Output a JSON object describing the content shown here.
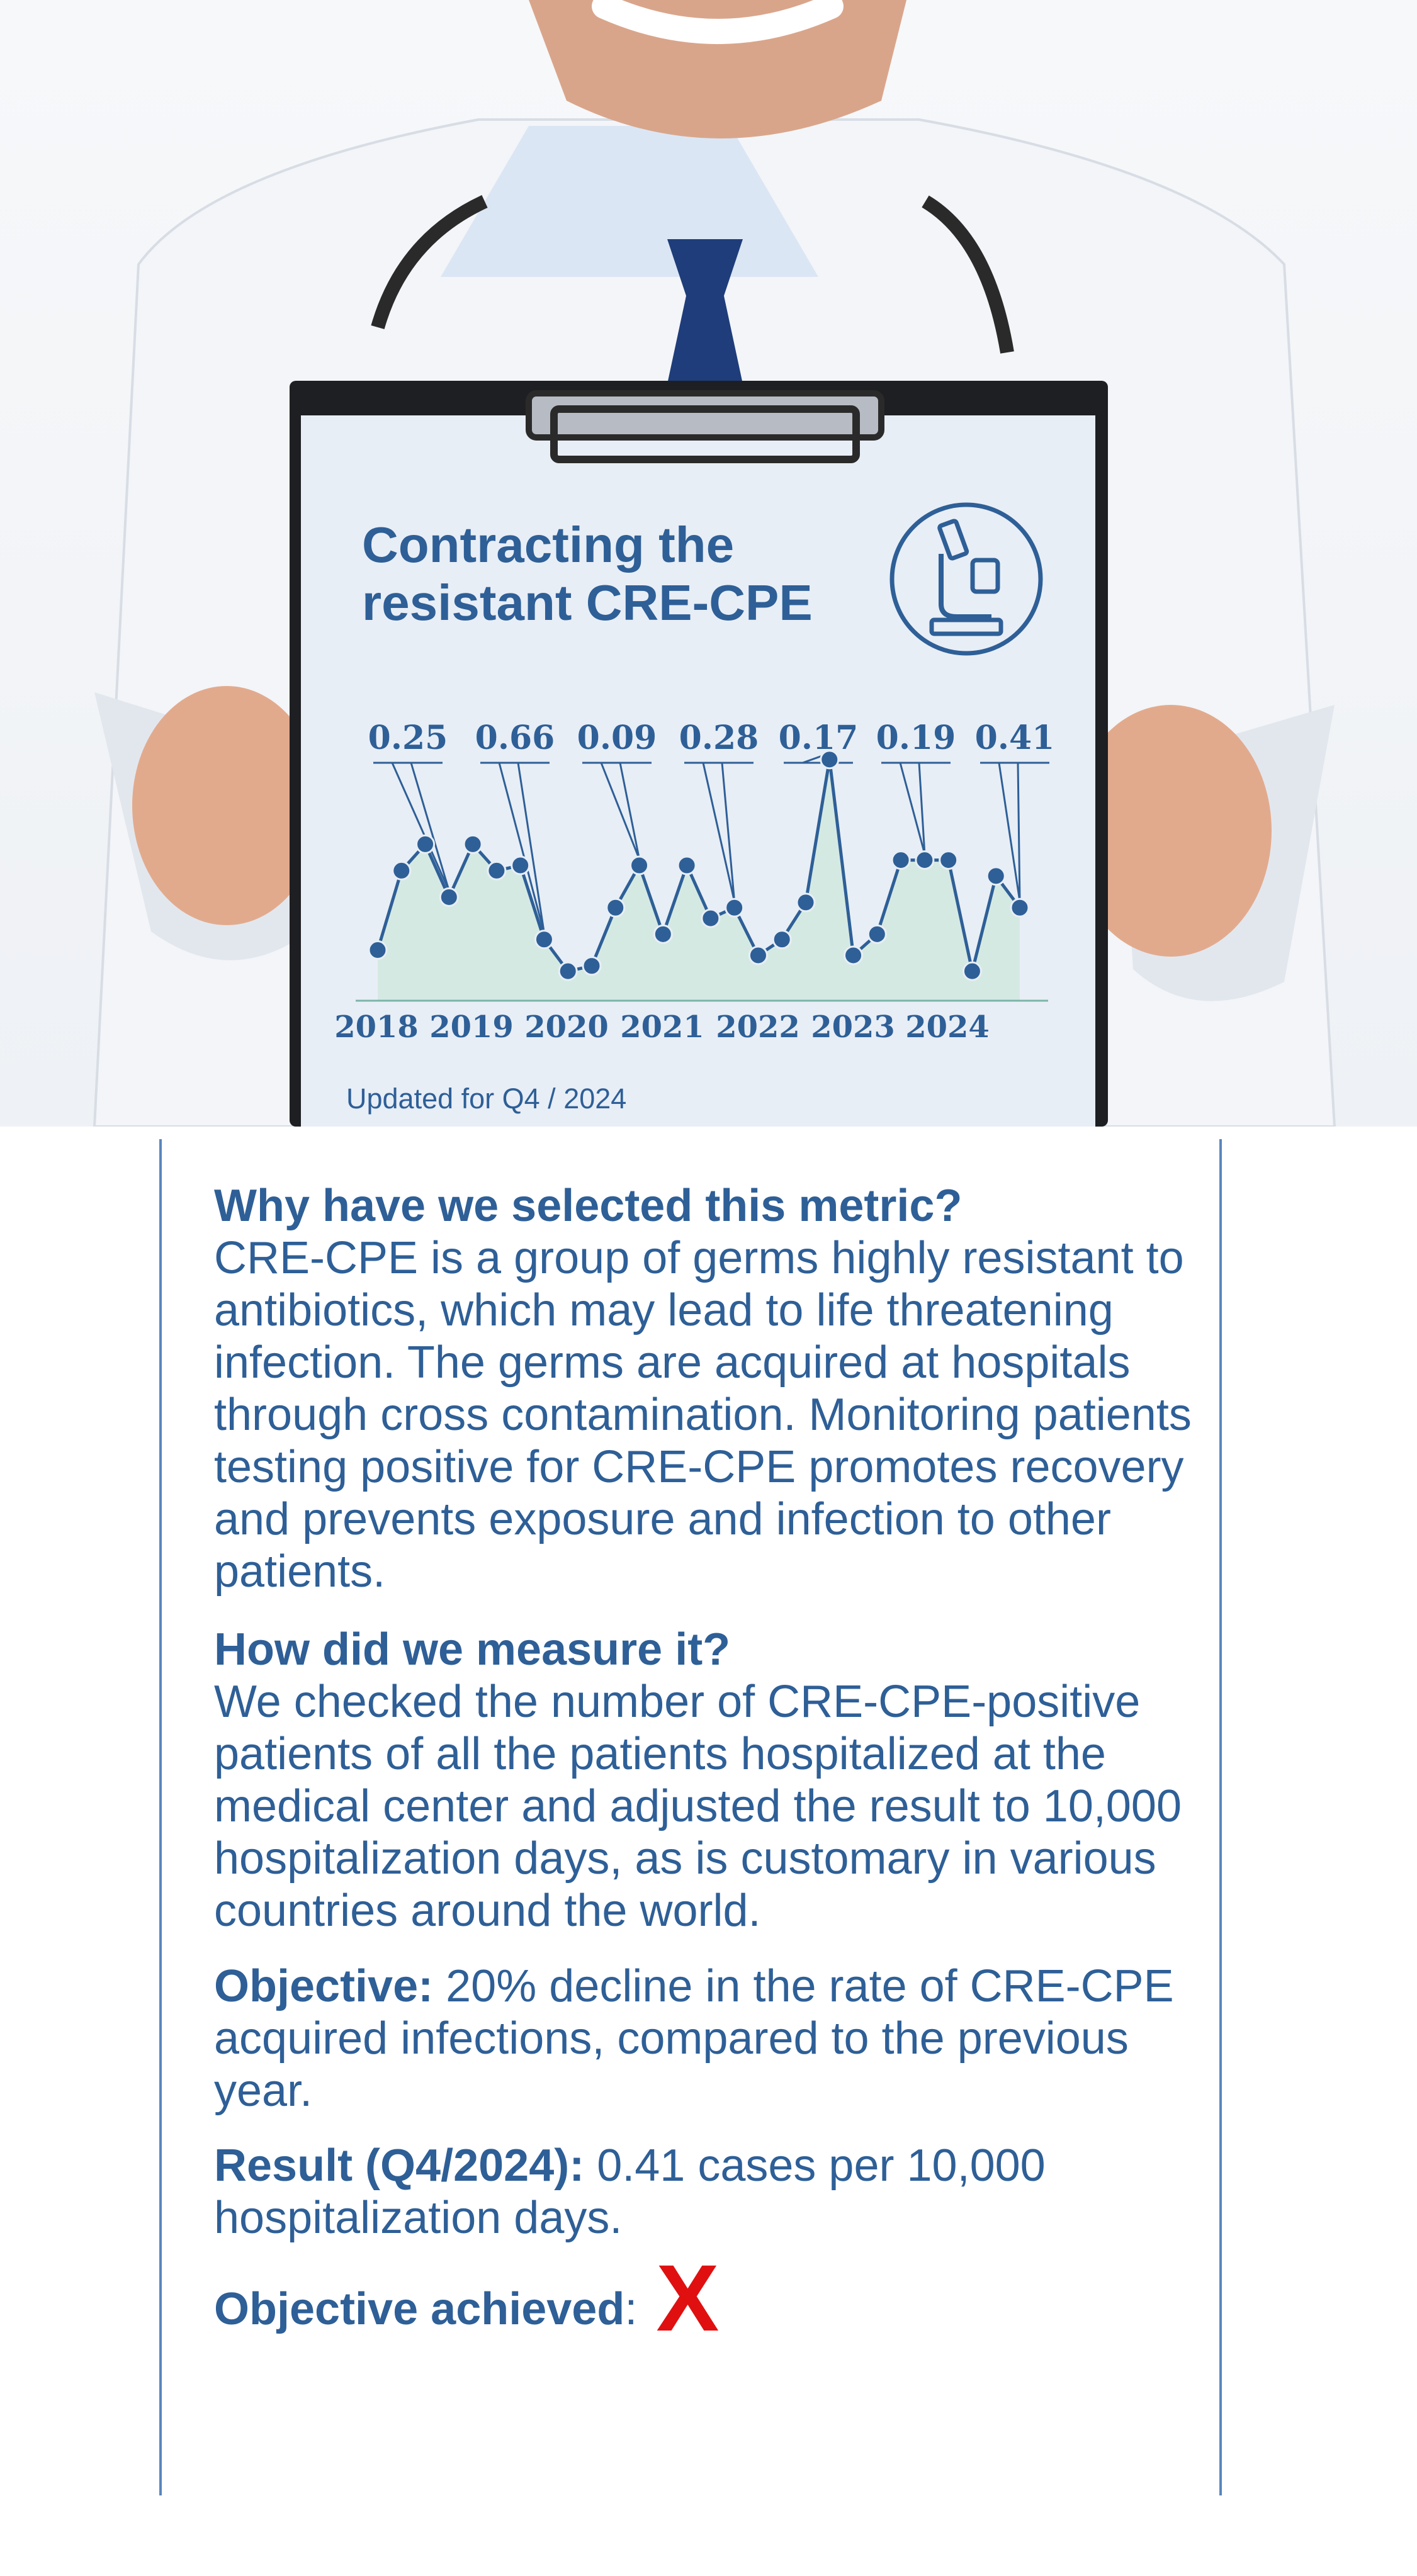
{
  "card": {
    "title_line1": "Contracting the",
    "title_line2": "resistant CRE-CPE",
    "updated": "Updated for Q4 / 2024",
    "icon": "microscope-icon"
  },
  "colors": {
    "accent": "#2e5f97",
    "fail": "#e01010"
  },
  "chart_data": {
    "type": "line",
    "x_tick_labels": [
      "2018",
      "2019",
      "2020",
      "2021",
      "2022",
      "2023",
      "2024"
    ],
    "annual_labels": [
      "0.25",
      "0.66",
      "0.09",
      "0.28",
      "0.17",
      "0.19",
      "0.41"
    ],
    "points": [
      2,
      17,
      22,
      12,
      22,
      17,
      18,
      4,
      -2,
      -1,
      10,
      18,
      5,
      18,
      8,
      10,
      1,
      4,
      11,
      38,
      1,
      5,
      19,
      19,
      19,
      -2,
      16,
      10
    ],
    "ylim": [
      -4,
      40
    ],
    "grid": false
  },
  "text": {
    "q1": "Why have we selected this metric?",
    "a1": "CRE-CPE is a group of germs highly resistant to antibiotics, which may lead to life threatening infection. The germs are acquired at hospitals through cross contamination. Monitoring patients testing positive for CRE-CPE promotes recovery and prevents exposure and infection to other patients.",
    "q2": "How did we measure it?",
    "a2": "We checked the number of CRE-CPE-positive patients of all the patients hospitalized at the medical center and adjusted the result to 10,000 hospitalization days, as is customary in various countries around the world.",
    "objective_label": "Objective:",
    "objective_text": " 20% decline in the rate of CRE-CPE acquired infections, compared to the previous year.",
    "result_label": "Result (Q4/2024):",
    "result_text": " 0.41 cases per 10,000 hospitalization days.",
    "achieved_label": "Objective achieved",
    "achieved_colon": ":",
    "achieved_mark": "X"
  }
}
